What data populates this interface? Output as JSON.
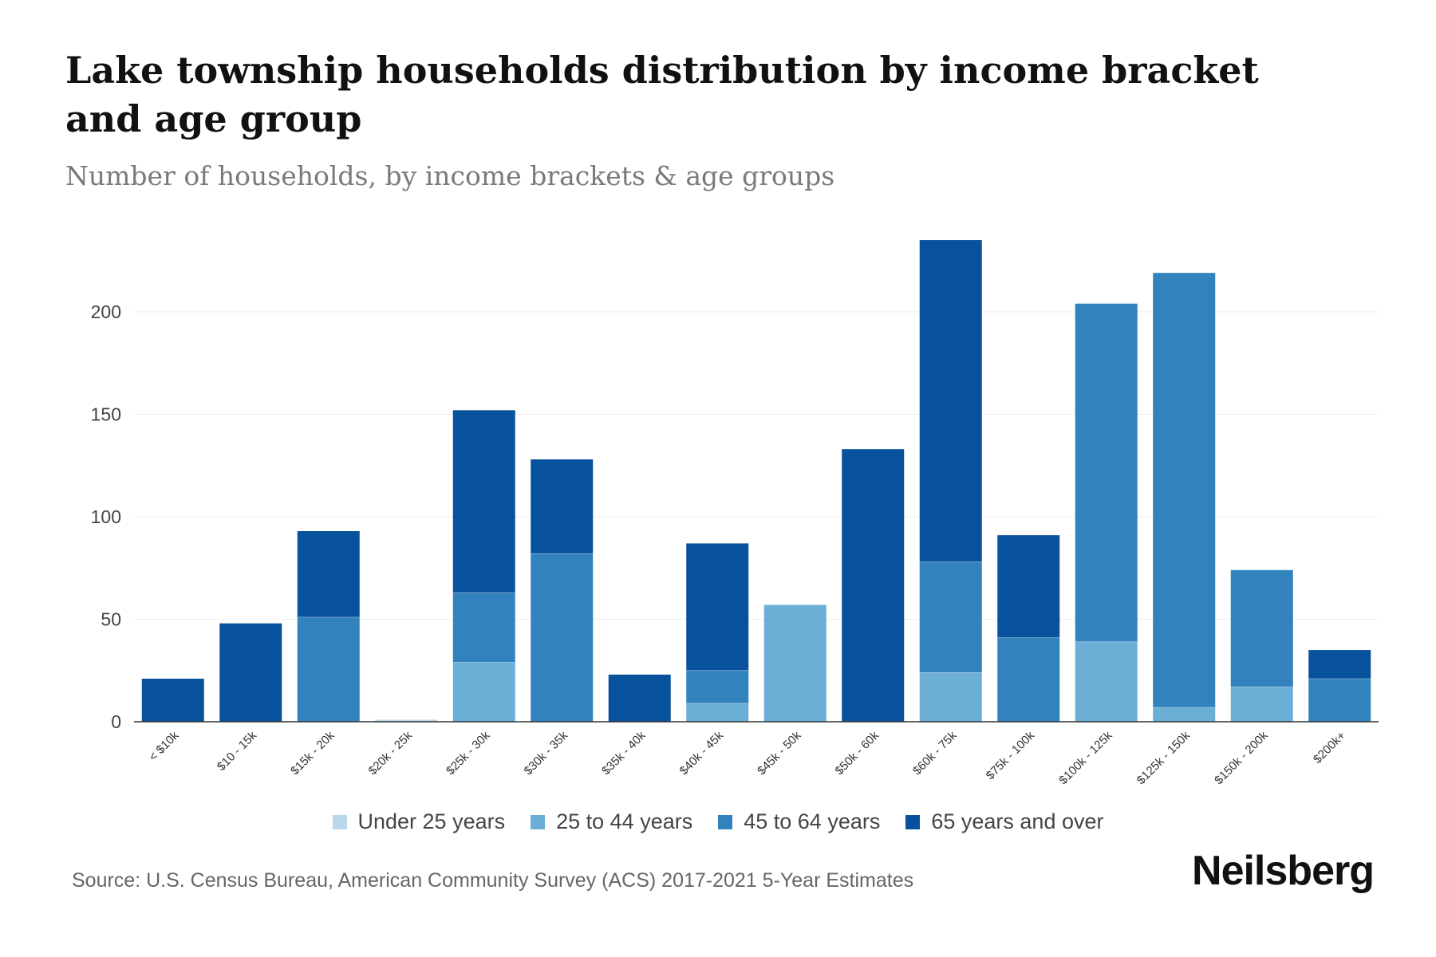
{
  "header": {
    "title": "Lake township households distribution by income bracket and age group",
    "subtitle": "Number of households, by income brackets & age groups"
  },
  "footer": {
    "source": "Source: U.S. Census Bureau, American Community Survey (ACS) 2017-2021 5-Year Estimates",
    "brand": "Neilsberg"
  },
  "chart_data": {
    "type": "bar",
    "stacked": true,
    "title": "Lake township households distribution by income bracket and age group",
    "subtitle": "Number of households, by income brackets & age groups",
    "xlabel": "",
    "ylabel": "",
    "ylim": [
      0,
      235
    ],
    "yticks": [
      0,
      50,
      100,
      150,
      200
    ],
    "grid": true,
    "legend_position": "bottom",
    "categories": [
      "< $10k",
      "$10 - 15k",
      "$15k - 20k",
      "$20k - 25k",
      "$25k - 30k",
      "$30k - 35k",
      "$35k - 40k",
      "$40k - 45k",
      "$45k - 50k",
      "$50k - 60k",
      "$60k - 75k",
      "$75k - 100k",
      "$100k - 125k",
      "$125k - 150k",
      "$150k - 200k",
      "$200k+"
    ],
    "series": [
      {
        "name": "Under 25 years",
        "color": "#b8d8ea",
        "values": [
          0,
          0,
          0,
          1,
          0,
          0,
          0,
          0,
          0,
          0,
          0,
          0,
          0,
          0,
          0,
          0
        ]
      },
      {
        "name": "25 to 44 years",
        "color": "#6baed6",
        "values": [
          0,
          0,
          0,
          0,
          29,
          0,
          0,
          9,
          57,
          0,
          24,
          0,
          39,
          7,
          17,
          0
        ]
      },
      {
        "name": "45 to 64 years",
        "color": "#3182bd",
        "values": [
          0,
          0,
          51,
          0,
          34,
          82,
          0,
          16,
          0,
          0,
          54,
          41,
          165,
          212,
          57,
          21
        ]
      },
      {
        "name": "65 years and over",
        "color": "#08519c",
        "values": [
          21,
          48,
          42,
          0,
          89,
          46,
          23,
          62,
          0,
          133,
          157,
          50,
          0,
          0,
          0,
          14
        ]
      }
    ]
  }
}
